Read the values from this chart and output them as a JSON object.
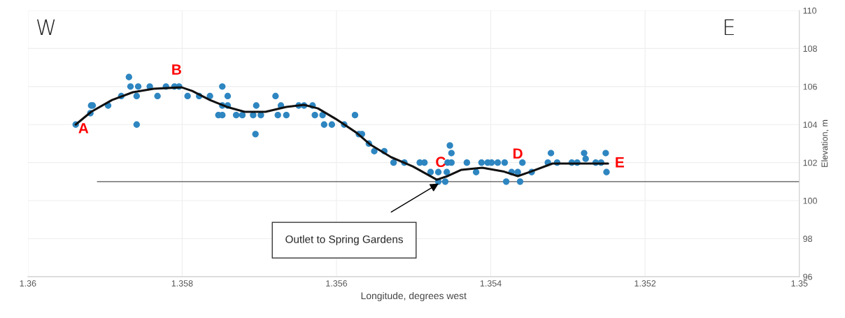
{
  "chart_data": {
    "type": "scatter",
    "xlabel": "Longitude, degrees west",
    "ylabel": "Elevation, m",
    "xlim": [
      1.36,
      1.35
    ],
    "xticks": [
      1.36,
      1.358,
      1.356,
      1.354,
      1.352,
      1.35
    ],
    "ylim": [
      96,
      110
    ],
    "yticks": [
      96,
      98,
      100,
      102,
      104,
      106,
      108,
      110
    ],
    "grid": true,
    "marker": "circle",
    "series": [
      {
        "color": "#2e86c1",
        "x": [
          1.35938,
          1.35918,
          1.35916,
          1.35919,
          1.35896,
          1.35879,
          1.35869,
          1.35867,
          1.35857,
          1.35859,
          1.35859,
          1.35842,
          1.35832,
          1.35821,
          1.3581,
          1.35804,
          1.35793,
          1.35778,
          1.35764,
          1.35748,
          1.35741,
          1.35748,
          1.35741,
          1.35753,
          1.35748,
          1.3573,
          1.35722,
          1.35708,
          1.35704,
          1.35698,
          1.35705,
          1.35679,
          1.35672,
          1.35676,
          1.35665,
          1.35649,
          1.35642,
          1.35631,
          1.35628,
          1.35618,
          1.35616,
          1.35606,
          1.3559,
          1.35576,
          1.35571,
          1.35567,
          1.35558,
          1.35551,
          1.35538,
          1.35526,
          1.35512,
          1.35492,
          1.35486,
          1.35478,
          1.35468,
          1.35468,
          1.35459,
          1.35453,
          1.35451,
          1.35456,
          1.35451,
          1.35457,
          1.35431,
          1.35419,
          1.35412,
          1.35404,
          1.35399,
          1.35391,
          1.35382,
          1.35373,
          1.35365,
          1.3538,
          1.35362,
          1.35359,
          1.35347,
          1.35322,
          1.35326,
          1.35314,
          1.35295,
          1.35288,
          1.35279,
          1.35277,
          1.35264,
          1.35257,
          1.35251,
          1.3525
        ],
        "values": [
          104.0,
          105.0,
          105.0,
          104.6,
          105.0,
          105.5,
          106.5,
          106.0,
          106.0,
          105.5,
          104.0,
          106.0,
          105.5,
          106.0,
          106.0,
          106.0,
          105.5,
          105.5,
          105.5,
          106.0,
          105.5,
          105.0,
          105.0,
          104.5,
          104.5,
          104.5,
          104.5,
          104.5,
          105.0,
          104.5,
          103.5,
          105.5,
          105.0,
          104.5,
          104.5,
          105.0,
          105.0,
          105.0,
          104.5,
          104.5,
          104.0,
          104.0,
          104.0,
          104.5,
          103.5,
          103.5,
          103.0,
          102.6,
          102.6,
          102.0,
          102.0,
          102.0,
          102.0,
          101.5,
          101.5,
          101.0,
          101.0,
          102.9,
          102.5,
          102.0,
          102.0,
          101.5,
          102.0,
          101.5,
          102.0,
          102.0,
          102.0,
          102.0,
          102.0,
          101.5,
          101.5,
          101.0,
          101.0,
          102.0,
          101.5,
          102.5,
          102.0,
          102.0,
          102.0,
          102.0,
          102.5,
          102.2,
          102.0,
          102.0,
          102.5,
          101.5
        ]
      },
      {
        "type": "line",
        "color": "#111111",
        "marker": "none",
        "x": [
          1.35938,
          1.35918,
          1.35891,
          1.35864,
          1.35837,
          1.35801,
          1.35787,
          1.35764,
          1.35742,
          1.35719,
          1.35692,
          1.35665,
          1.35642,
          1.35624,
          1.35601,
          1.35574,
          1.35556,
          1.35529,
          1.35501,
          1.3547,
          1.35456,
          1.35438,
          1.35411,
          1.35384,
          1.35365,
          1.35347,
          1.3532,
          1.35284,
          1.35248
        ],
        "values": [
          104.0,
          104.67,
          105.29,
          105.7,
          105.88,
          105.96,
          105.77,
          105.29,
          104.93,
          104.67,
          104.67,
          104.93,
          105.04,
          104.85,
          104.3,
          103.57,
          102.94,
          102.28,
          101.8,
          101.1,
          101.29,
          101.62,
          101.73,
          101.54,
          101.29,
          101.54,
          101.95,
          101.95,
          101.95
        ]
      }
    ],
    "ref_lines": [
      {
        "axis": "y",
        "value": 101,
        "color": "#555555"
      }
    ],
    "annotations": [
      "W",
      "E",
      {
        "text": "A",
        "x": 1.35938,
        "y": 104.0
      },
      {
        "text": "B",
        "x": 1.35801,
        "y": 105.96
      },
      {
        "text": "C",
        "x": 1.3547,
        "y": 101.1
      },
      {
        "text": "D",
        "x": 1.35365,
        "y": 101.29
      },
      {
        "text": "E",
        "x": 1.35248,
        "y": 101.95
      },
      "Outlet to Spring Gardens"
    ]
  }
}
